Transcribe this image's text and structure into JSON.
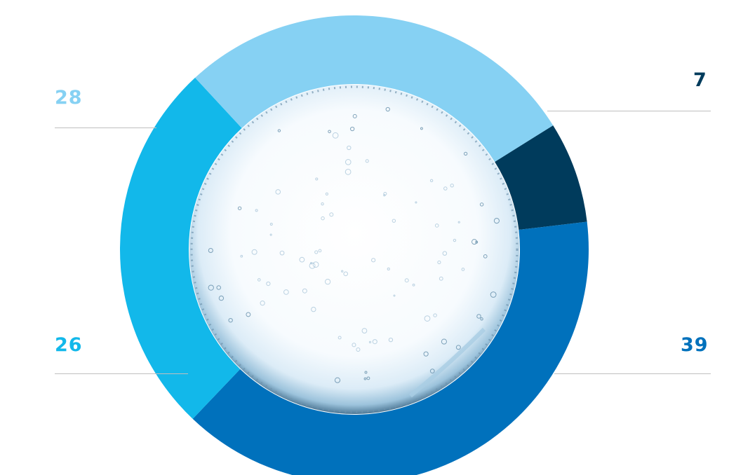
{
  "chart_data": {
    "type": "pie",
    "variant": "donut",
    "center_image": "water-splash",
    "slices": [
      {
        "value": 7,
        "label": "7",
        "color": "#003b5c"
      },
      {
        "value": 39,
        "label": "39",
        "color": "#0071bc"
      },
      {
        "value": 26,
        "label": "26",
        "color": "#12b8ea"
      },
      {
        "value": 28,
        "label": "28",
        "color": "#86d1f3"
      }
    ],
    "leader_line_color": "#bfbfbf"
  }
}
